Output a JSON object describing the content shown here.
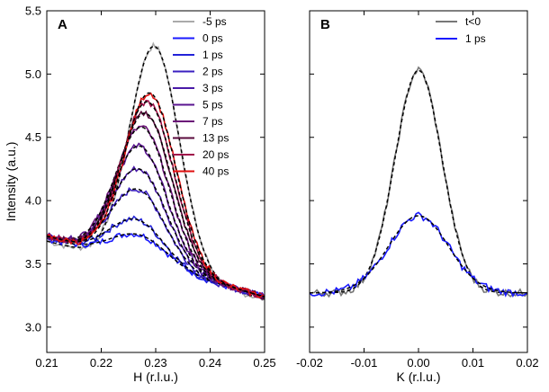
{
  "chart_data": [
    {
      "type": "line",
      "panel": "A",
      "xlabel": "H (r.l.u.)",
      "ylabel": "Intensity (a.u.)",
      "xlim": [
        0.21,
        0.25
      ],
      "ylim": [
        2.8,
        5.5
      ],
      "xticks": [
        "0.21",
        "0.22",
        "0.23",
        "0.24",
        "0.25"
      ],
      "yticks": [
        "3.0",
        "3.5",
        "4.0",
        "4.5",
        "5.0",
        "5.5"
      ],
      "xtick_values": [
        0.21,
        0.22,
        0.23,
        0.24,
        0.25
      ],
      "ytick_values": [
        3.0,
        3.5,
        4.0,
        4.5,
        5.0,
        5.5
      ],
      "legend_position": "top-right",
      "model": "gaussian peak on sloping background; solid = data, dashed black = fit",
      "series": [
        {
          "name": "-5 ps",
          "color": "#aaaaaa",
          "center": 0.2298,
          "peak": 5.22,
          "sigma": 0.0046,
          "bg_start": 3.68,
          "bg_end": 3.22
        },
        {
          "name": "0 ps",
          "color": "#1a1aff",
          "center": 0.227,
          "peak": 3.73,
          "sigma": 0.0052,
          "bg_start": 3.7,
          "bg_end": 3.24
        },
        {
          "name": "1 ps",
          "color": "#2222d8",
          "center": 0.2266,
          "peak": 3.85,
          "sigma": 0.005,
          "bg_start": 3.71,
          "bg_end": 3.24
        },
        {
          "name": "2 ps",
          "color": "#3a1fc0",
          "center": 0.2268,
          "peak": 4.09,
          "sigma": 0.005,
          "bg_start": 3.71,
          "bg_end": 3.24
        },
        {
          "name": "3 ps",
          "color": "#4a1aa8",
          "center": 0.227,
          "peak": 4.25,
          "sigma": 0.005,
          "bg_start": 3.72,
          "bg_end": 3.24
        },
        {
          "name": "5 ps",
          "color": "#5a1590",
          "center": 0.2272,
          "peak": 4.43,
          "sigma": 0.0049,
          "bg_start": 3.72,
          "bg_end": 3.24
        },
        {
          "name": "7 ps",
          "color": "#6b1278",
          "center": 0.2276,
          "peak": 4.58,
          "sigma": 0.0049,
          "bg_start": 3.72,
          "bg_end": 3.24
        },
        {
          "name": "13 ps",
          "color": "#5a0a3c",
          "center": 0.2282,
          "peak": 4.69,
          "sigma": 0.0048,
          "bg_start": 3.72,
          "bg_end": 3.24
        },
        {
          "name": "20 ps",
          "color": "#a0104a",
          "center": 0.2286,
          "peak": 4.78,
          "sigma": 0.0048,
          "bg_start": 3.72,
          "bg_end": 3.24
        },
        {
          "name": "40 ps",
          "color": "#e01010",
          "center": 0.229,
          "peak": 4.85,
          "sigma": 0.0047,
          "bg_start": 3.72,
          "bg_end": 3.24
        }
      ]
    },
    {
      "type": "line",
      "panel": "B",
      "xlabel": "K (r.l.u.)",
      "ylabel": "",
      "xlim": [
        -0.02,
        0.02
      ],
      "ylim": [
        2.8,
        5.5
      ],
      "xticks": [
        "-0.02",
        "-0.01",
        "0.00",
        "0.01",
        "0.02"
      ],
      "xtick_values": [
        -0.02,
        -0.01,
        0.0,
        0.01,
        0.02
      ],
      "legend_position": "top-right",
      "model": "gaussian peak on flat background; solid = data, dashed black = fit",
      "series": [
        {
          "name": "t<0",
          "color": "#777777",
          "center": 0.0,
          "peak": 5.03,
          "sigma": 0.0043,
          "bg_start": 3.27,
          "bg_end": 3.27
        },
        {
          "name": "1 ps",
          "color": "#1a1aff",
          "center": 0.0,
          "peak": 3.88,
          "sigma": 0.0055,
          "bg_start": 3.27,
          "bg_end": 3.27
        }
      ]
    }
  ]
}
